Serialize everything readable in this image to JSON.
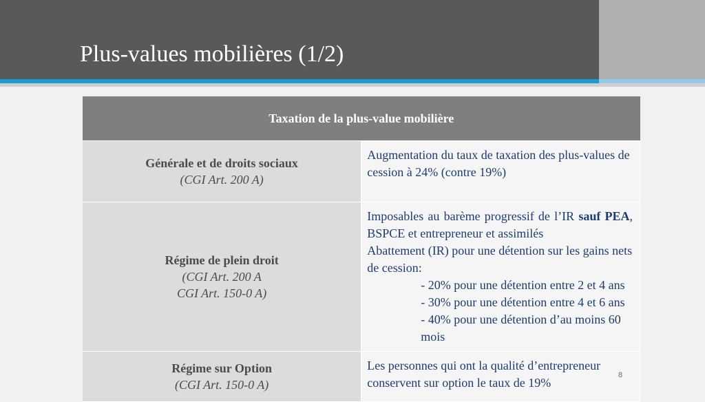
{
  "slide": {
    "title": "Plus-values mobilières (1/2)",
    "page_number": "8"
  },
  "colors": {
    "header_dark": "#595959",
    "header_side": "#b0b0b0",
    "accent_blue": "#1e9bd7",
    "accent_light_blue": "#92cbea",
    "table_header": "#7f7f7f",
    "label_cell": "#dcdcdc",
    "content_text": "#1c3d6e"
  },
  "table": {
    "header": "Taxation de la plus-value mobilière",
    "rows": [
      {
        "label": "Générale et de droits sociaux",
        "reference_lines": [
          "(CGI Art. 200 A)"
        ],
        "content_lines": [
          "Augmentation du taux de taxation des plus-values de cession à 24% (contre 19%)"
        ]
      },
      {
        "label": "Régime de plein droit",
        "reference_lines": [
          "(CGI Art. 200 A",
          "CGI Art. 150-0 A)"
        ],
        "content": {
          "intro_before_bold": "Imposables au barème progressif de l’IR",
          "bold": "sauf PEA",
          "intro_after_bold": ",",
          "intro_line_2": "BSPCE et entrepreneur et assimilés",
          "abatement_line_1": "Abattement (IR) pour une détention sur les gains nets",
          "abatement_line_2": "de cession:",
          "bullets": [
            "- 20% pour une détention entre 2 et 4 ans",
            "- 30% pour une détention entre 4 et 6 ans",
            "- 40% pour une détention d’au moins 60 mois"
          ]
        }
      },
      {
        "label": "Régime sur Option",
        "reference_lines": [
          "(CGI Art. 150-0 A)"
        ],
        "content_lines": [
          "Les personnes qui ont la qualité d’entrepreneur",
          "conservent sur option le taux de 19%"
        ]
      }
    ]
  }
}
